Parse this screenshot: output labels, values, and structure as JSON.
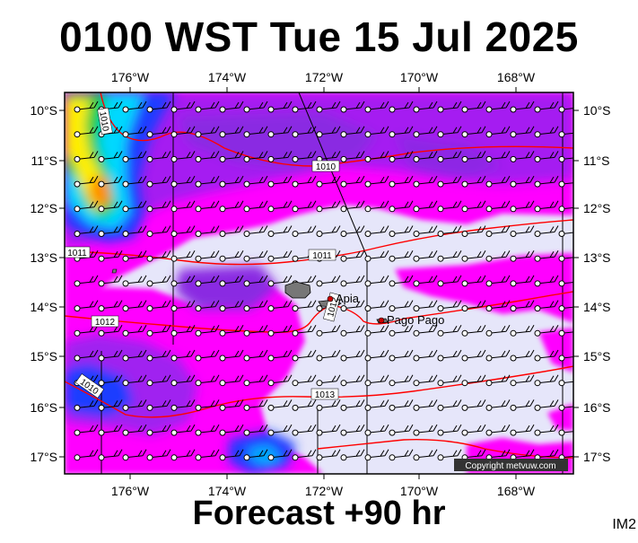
{
  "title": "0100 WST Tue 15 Jul 2025",
  "subtitle": "Forecast +90 hr",
  "image_id": "IM2",
  "copyright": "Copyright metvuw.com",
  "lon_labels": [
    "176°W",
    "174°W",
    "172°W",
    "170°W",
    "168°W"
  ],
  "lat_labels": [
    "10°S",
    "11°S",
    "12°S",
    "13°S",
    "14°S",
    "15°S",
    "16°S",
    "17°S"
  ],
  "places": [
    {
      "name": "Apia"
    },
    {
      "name": "Pago Pago"
    }
  ],
  "isobar_labels": [
    "1010",
    "1010",
    "1011",
    "1011",
    "1012",
    "1012",
    "1013",
    "1010"
  ],
  "colors": {
    "background_pale": "#e6e6fa",
    "magenta": "#ff00ff",
    "violet": "#a020f0",
    "purple": "#8a2be2",
    "blue": "#1e3cff",
    "cyan": "#00d8ff",
    "green": "#00cc44",
    "yellow": "#ffee00",
    "orange": "#ff8c00",
    "isobar": "#ff0000"
  }
}
